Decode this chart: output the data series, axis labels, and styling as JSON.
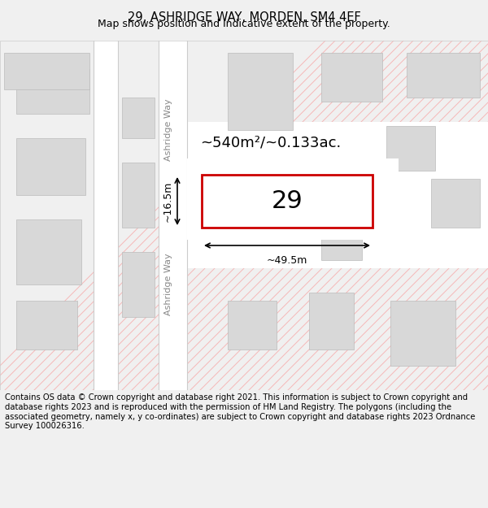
{
  "title_line1": "29, ASHRIDGE WAY, MORDEN, SM4 4EF",
  "title_line2": "Map shows position and indicative extent of the property.",
  "footer_text": "Contains OS data © Crown copyright and database right 2021. This information is subject to Crown copyright and database rights 2023 and is reproduced with the permission of HM Land Registry. The polygons (including the associated geometry, namely x, y co-ordinates) are subject to Crown copyright and database rights 2023 Ordnance Survey 100026316.",
  "bg_color": "#f5f5f5",
  "map_bg": "#ffffff",
  "road_color": "#ffffff",
  "building_color": "#d9d9d9",
  "line_color": "#f0a0a0",
  "highlight_color": "#cc0000",
  "dim_color": "#222222",
  "title_fontsize": 10,
  "label_fontsize": 8,
  "property_label": "29",
  "area_label": "~540m²/~0.133ac.",
  "dim_width": "~49.5m",
  "dim_height": "~16.5m",
  "street_name": "Ashridge Way"
}
